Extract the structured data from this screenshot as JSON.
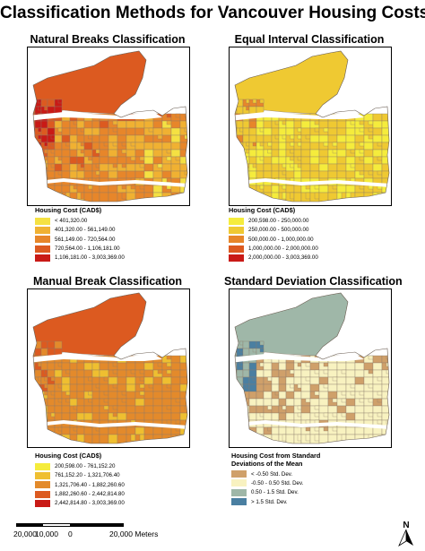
{
  "title": "Classification Methods for Vancouver Housing Costs",
  "panels": [
    {
      "title": "Natural Breaks Classification",
      "legend_title": "Housing Cost (CAD$)",
      "palette": [
        "#f5e142",
        "#f0b132",
        "#e7862a",
        "#dc5a20",
        "#c91a16"
      ],
      "fill_scheme": "natural",
      "classes": [
        {
          "label": "< 401,320.00",
          "color": "#f5e142"
        },
        {
          "label": "401,320.00 - 561,149.00",
          "color": "#f0b132"
        },
        {
          "label": "561,149.00 - 720,564.00",
          "color": "#e7862a"
        },
        {
          "label": "720,564.00 - 1,106,181.00",
          "color": "#dc5a20"
        },
        {
          "label": "1,106,181.00 - 3,003,369.00",
          "color": "#c91a16"
        }
      ]
    },
    {
      "title": "Equal Interval Classification",
      "legend_title": "Housing Cost (CAD$)",
      "palette": [
        "#f5ec3c",
        "#efc932",
        "#e7862a",
        "#dc5a20",
        "#c91a16"
      ],
      "fill_scheme": "equal",
      "classes": [
        {
          "label": "200,598.00 - 250,000.00",
          "color": "#f5ec3c"
        },
        {
          "label": "250,000.00 - 500,000.00",
          "color": "#efc932"
        },
        {
          "label": "500,000.00 - 1,000,000.00",
          "color": "#e7862a"
        },
        {
          "label": "1,000,000.00 - 2,000,000.00",
          "color": "#dc5a20"
        },
        {
          "label": "2,000,000.00 - 3,003,369.00",
          "color": "#c91a16"
        }
      ]
    },
    {
      "title": "Manual Break Classification",
      "legend_title": "Housing Cost (CAD$)",
      "palette": [
        "#f5ec3c",
        "#efbf30",
        "#e38a2b",
        "#dc5a20",
        "#c91a16"
      ],
      "fill_scheme": "manual",
      "classes": [
        {
          "label": "200,598.00 - 761,152.20",
          "color": "#f5ec3c"
        },
        {
          "label": "761,152.20 - 1,321,706.40",
          "color": "#efbf30"
        },
        {
          "label": "1,321,706.40 - 1,882,260.60",
          "color": "#e38a2b"
        },
        {
          "label": "1,882,260.60 - 2,442,814.80",
          "color": "#dc5a20"
        },
        {
          "label": "2,442,814.80 - 3,003,369.00",
          "color": "#c91a16"
        }
      ]
    },
    {
      "title": "Standard Deviation Classification",
      "legend_title": "Housing Cost from Standard Deviations of the Mean",
      "palette": [
        "#cfa06a",
        "#f8f2c0",
        "#9fb7a8",
        "#4a7fa1"
      ],
      "fill_scheme": "stddev",
      "classes": [
        {
          "label": "< -0.50 Std. Dev.",
          "color": "#cfa06a"
        },
        {
          "label": "-0.50 - 0.50 Std. Dev.",
          "color": "#f8f2c0"
        },
        {
          "label": "0.50 - 1.5 Std. Dev.",
          "color": "#9fb7a8"
        },
        {
          "label": "> 1.5 Std. Dev.",
          "color": "#4a7fa1"
        }
      ]
    }
  ],
  "scale_bar": {
    "labels": [
      "20,000",
      "10,000",
      "0",
      "20,000 Meters"
    ]
  },
  "north_arrow": {
    "label": "N",
    "icon": "north-arrow-icon"
  }
}
